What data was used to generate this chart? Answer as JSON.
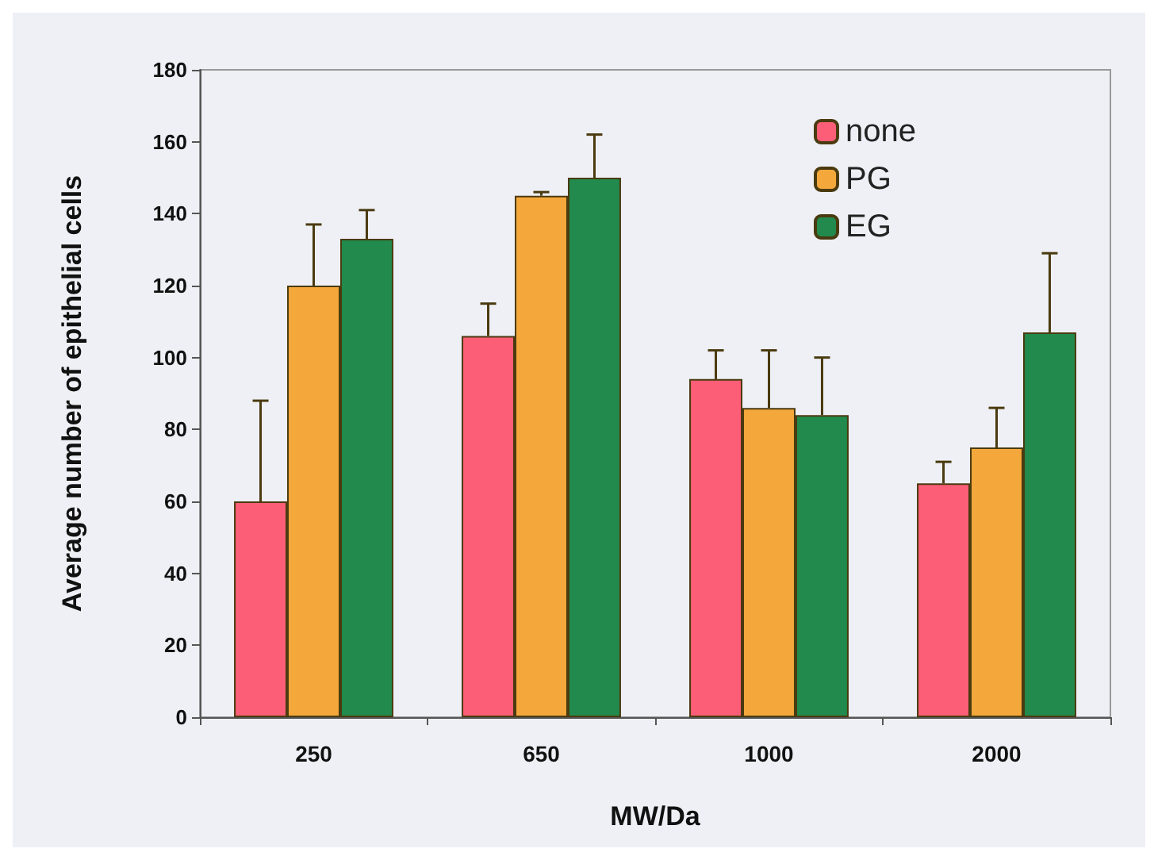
{
  "chart_data": {
    "type": "bar",
    "xlabel": "MW/Da",
    "ylabel": "Average number of epithelial cells",
    "categories": [
      "250",
      "650",
      "1000",
      "2000"
    ],
    "series": [
      {
        "name": "none",
        "color": "#fb5e76",
        "values": [
          60,
          106,
          94,
          65
        ],
        "errors": [
          [
            60,
            88
          ],
          [
            106,
            115
          ],
          [
            94,
            102
          ],
          [
            65,
            71
          ]
        ]
      },
      {
        "name": "PG",
        "color": "#f4a83c",
        "values": [
          120,
          145,
          86,
          75
        ],
        "errors": [
          [
            120,
            137
          ],
          [
            145,
            146
          ],
          [
            86,
            102
          ],
          [
            75,
            86
          ]
        ]
      },
      {
        "name": "EG",
        "color": "#228a4c",
        "values": [
          133,
          150,
          84,
          107
        ],
        "errors": [
          [
            133,
            141
          ],
          [
            150,
            162
          ],
          [
            84,
            100
          ],
          [
            107,
            129
          ]
        ]
      }
    ],
    "ylim": [
      0,
      180
    ],
    "yticks": [
      0,
      20,
      40,
      60,
      80,
      100,
      120,
      140,
      160,
      180
    ],
    "grid": false,
    "legend": "top right"
  }
}
